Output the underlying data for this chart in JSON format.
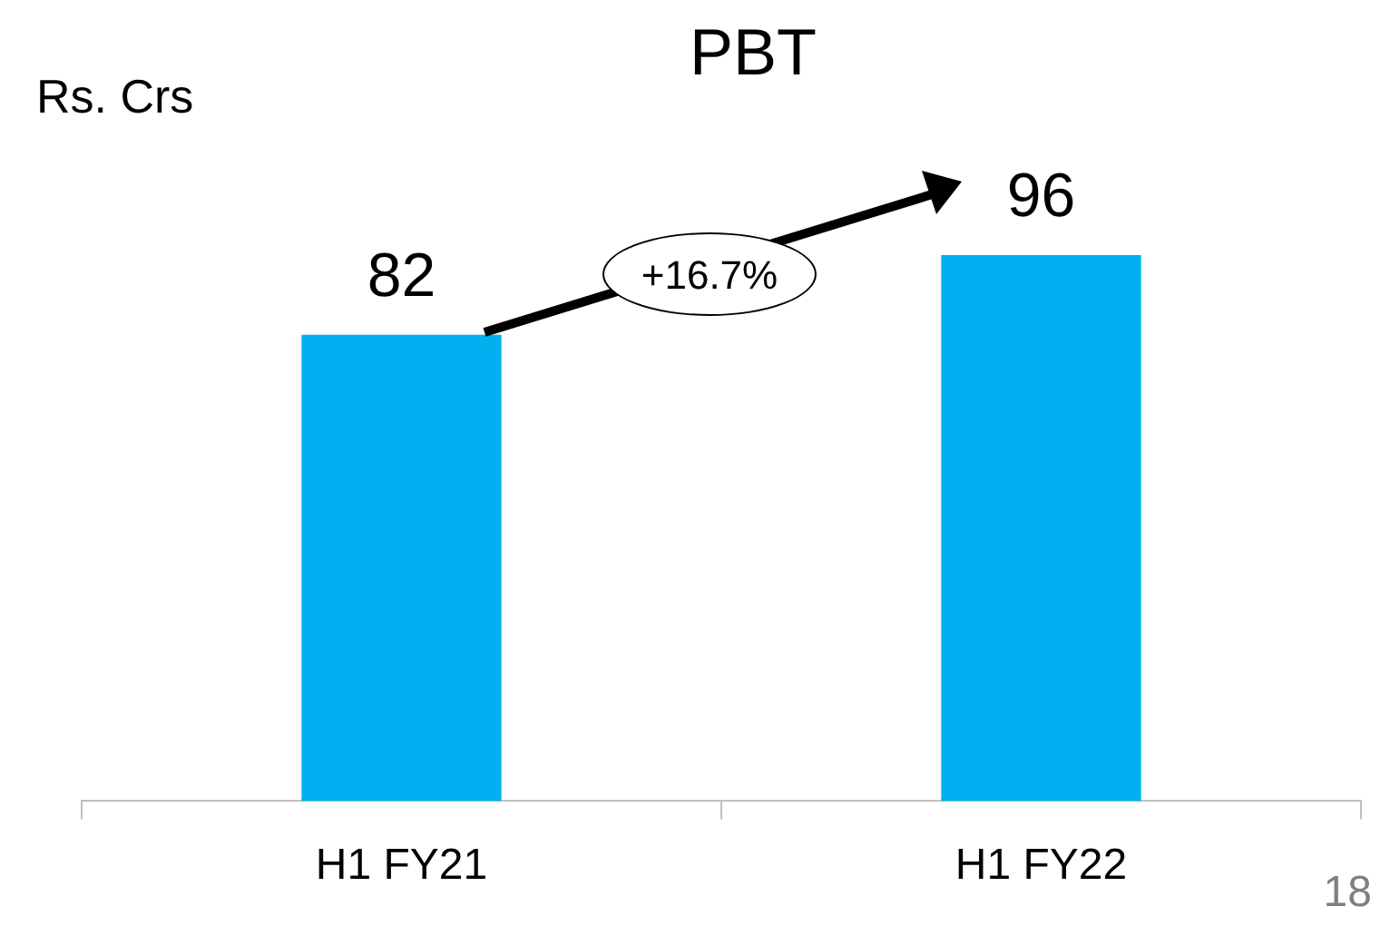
{
  "chart_data": {
    "type": "bar",
    "title": "PBT",
    "ylabel": "Rs. Crs",
    "categories": [
      "H1 FY21",
      "H1 FY22"
    ],
    "values": [
      82,
      96
    ],
    "color": "#00b0f0",
    "data_labels": true,
    "grid": false,
    "legend": false,
    "annotations": [
      "+16.7%",
      "18"
    ]
  }
}
